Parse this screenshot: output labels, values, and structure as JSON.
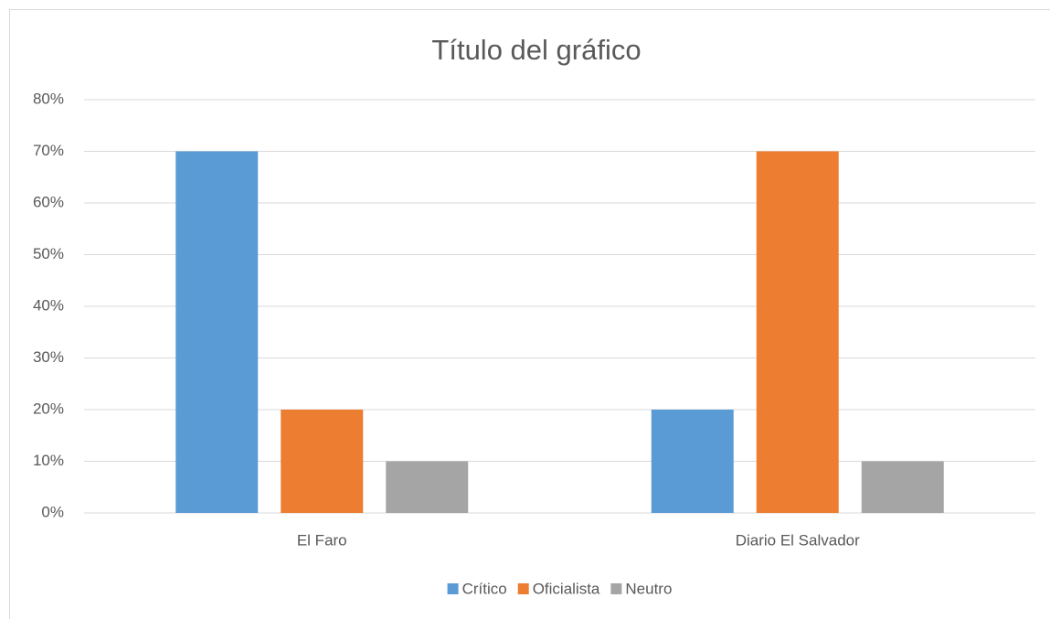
{
  "chart_data": {
    "type": "bar",
    "title": "Título del gráfico",
    "categories": [
      "El Faro",
      "Diario El Salvador"
    ],
    "series": [
      {
        "name": "Crítico",
        "color": "#5b9bd5",
        "values": [
          70,
          20
        ]
      },
      {
        "name": "Oficialista",
        "color": "#ed7d31",
        "values": [
          20,
          70
        ]
      },
      {
        "name": "Neutro",
        "color": "#a5a5a5",
        "values": [
          10,
          10
        ]
      }
    ],
    "ylim": [
      0,
      80
    ],
    "yticks": [
      {
        "value": 0,
        "label": "0%"
      },
      {
        "value": 10,
        "label": "10%"
      },
      {
        "value": 20,
        "label": "20%"
      },
      {
        "value": 30,
        "label": "30%"
      },
      {
        "value": 40,
        "label": "40%"
      },
      {
        "value": 50,
        "label": "50%"
      },
      {
        "value": 60,
        "label": "60%"
      },
      {
        "value": 70,
        "label": "70%"
      },
      {
        "value": 80,
        "label": "80%"
      }
    ],
    "grid": true,
    "legend": "bottom"
  }
}
